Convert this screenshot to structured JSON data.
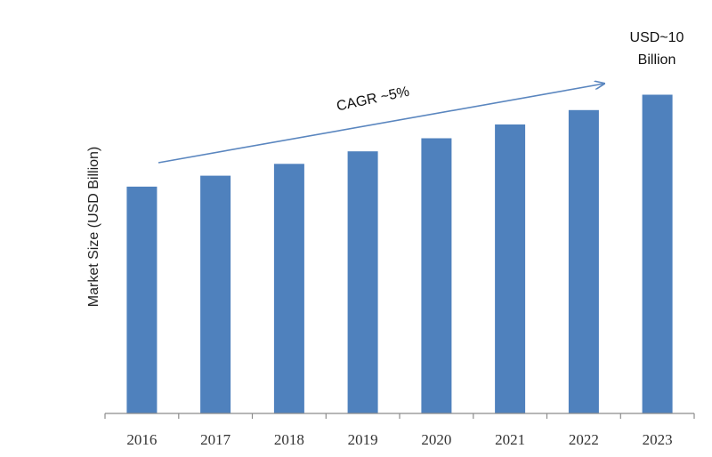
{
  "chart_data": {
    "type": "bar",
    "categories": [
      "2016",
      "2017",
      "2018",
      "2019",
      "2020",
      "2021",
      "2022",
      "2023"
    ],
    "values": [
      7.08,
      7.42,
      7.79,
      8.18,
      8.59,
      9.02,
      9.47,
      9.95
    ],
    "ylabel": "Market Size (USD Billion)",
    "xlabel": "",
    "ylim": [
      0,
      11.6
    ],
    "grid": false,
    "bar_color": "#4F81BD",
    "annotations": {
      "cagr": "CAGR ~5%",
      "last_value_line1": "USD~10",
      "last_value_line2": "Billion"
    }
  }
}
